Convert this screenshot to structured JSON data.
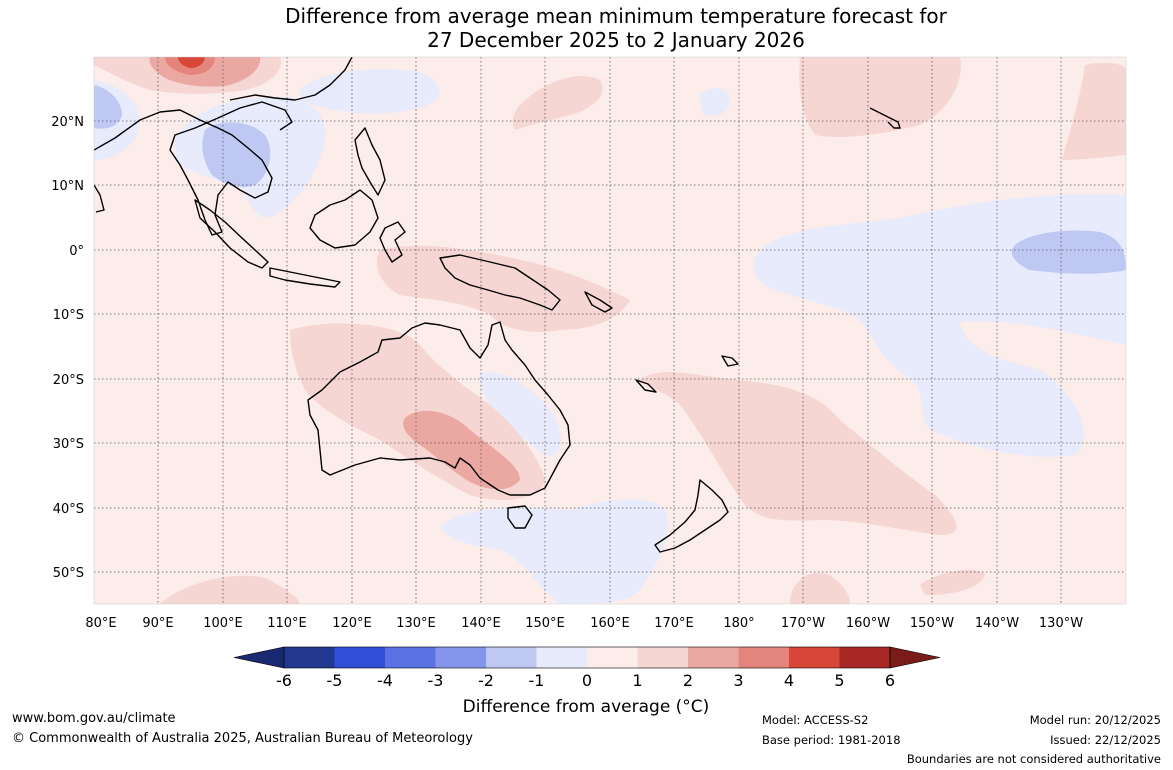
{
  "title": {
    "line1": "Difference from average mean minimum temperature forecast for",
    "line2": "27 December 2025 to 2 January 2026"
  },
  "map": {
    "lat_labels": [
      "20°N",
      "10°N",
      "0°",
      "10°S",
      "20°S",
      "30°S",
      "40°S",
      "50°S"
    ],
    "lon_labels": [
      "80°E",
      "90°E",
      "100°E",
      "110°E",
      "120°E",
      "130°E",
      "140°E",
      "150°E",
      "160°E",
      "170°E",
      "180°",
      "170°W",
      "160°W",
      "150°W",
      "140°W",
      "130°W"
    ],
    "region": "Australia and western Pacific"
  },
  "colorbar": {
    "title": "Difference from average (°C)",
    "ticks": [
      "-6",
      "-5",
      "-4",
      "-3",
      "-2",
      "-1",
      "0",
      "1",
      "2",
      "3",
      "4",
      "5",
      "6"
    ],
    "colors": [
      "#22378f",
      "#2f4fd6",
      "#5a72e3",
      "#8596ea",
      "#bfc8f3",
      "#e8ebfb",
      "#fcecea",
      "#f5d6d3",
      "#eba8a2",
      "#e3857d",
      "#d84637",
      "#a72824"
    ],
    "under_color": "#1a2a72",
    "over_color": "#7a1c17"
  },
  "footer": {
    "website": "www.bom.gov.au/climate",
    "copyright": "© Commonwealth of Australia 2025, Australian Bureau of Meteorology",
    "model": "Model: ACCESS-S2",
    "base_period": "Base period: 1981-2018",
    "model_run": "Model run: 20/12/2025",
    "issued": "Issued: 22/12/2025",
    "disclaimer": "Boundaries are not considered authoritative"
  }
}
